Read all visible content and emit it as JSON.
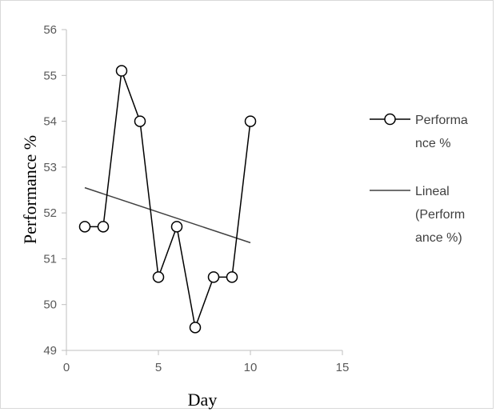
{
  "chart_data": {
    "type": "line",
    "xlabel": "Day",
    "ylabel": "Performance %",
    "xlim": [
      0,
      15
    ],
    "ylim": [
      49,
      56
    ],
    "x_ticks": [
      0,
      5,
      10,
      15
    ],
    "y_ticks": [
      49,
      50,
      51,
      52,
      53,
      54,
      55,
      56
    ],
    "x_tick_labels": [
      "0",
      "5",
      "10",
      "15"
    ],
    "y_tick_labels": [
      "49",
      "50",
      "51",
      "52",
      "53",
      "54",
      "55",
      "56"
    ],
    "grid": false,
    "legend_position": "right",
    "series": [
      {
        "name": "Performance %",
        "x": [
          1,
          2,
          3,
          4,
          5,
          6,
          7,
          8,
          9,
          10
        ],
        "y": [
          51.7,
          51.7,
          55.1,
          54.0,
          50.6,
          51.7,
          49.5,
          50.6,
          50.6,
          54.0
        ],
        "marker": "circle",
        "color": "#000000"
      },
      {
        "name": "Lineal (Performance %)",
        "type": "trendline",
        "x": [
          1,
          10
        ],
        "y": [
          52.55,
          51.35
        ],
        "color": "#404040"
      }
    ],
    "legend": [
      {
        "lines": [
          "Performa",
          "nce %"
        ]
      },
      {
        "lines": [
          "Lineal",
          "(Perform",
          "ance %)"
        ]
      }
    ]
  }
}
